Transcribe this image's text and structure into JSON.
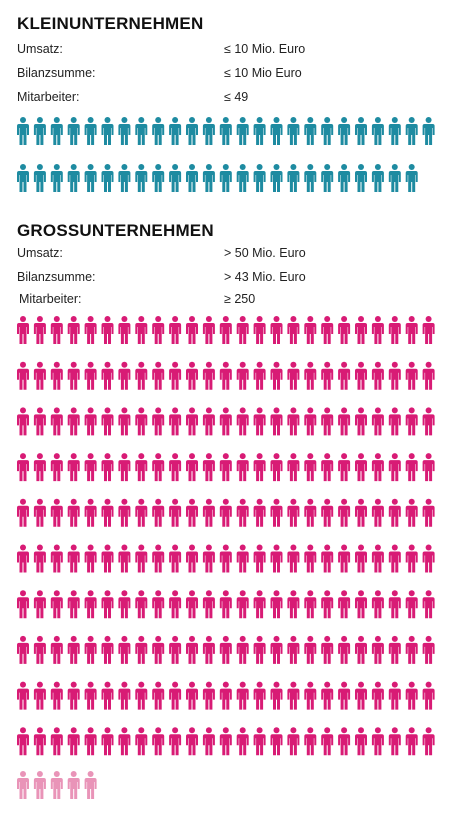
{
  "small": {
    "title": "KLEINUNTERNEHMEN",
    "rows": [
      {
        "label": "Umsatz:",
        "value": "≤ 10 Mio. Euro"
      },
      {
        "label": "Bilanzsumme:",
        "value": "≤ 10 Mio Euro"
      },
      {
        "label": "Mitarbeiter:",
        "value": "≤ 49"
      }
    ],
    "icon_count": 49,
    "icon_color": "#1e8ba1"
  },
  "large": {
    "title": "GROSSUNTERNEHMEN",
    "rows": [
      {
        "label": "Umsatz:",
        "value": "> 50 Mio. Euro"
      },
      {
        "label": "Bilanzsumme:",
        "value": "> 43 Mio. Euro"
      },
      {
        "label": "Mitarbeiter:",
        "value": "≥ 250"
      }
    ],
    "icon_count": 250,
    "icon_color": "#d81b75",
    "extra_icon_count": 5,
    "extra_icon_color": "#e994b8"
  }
}
